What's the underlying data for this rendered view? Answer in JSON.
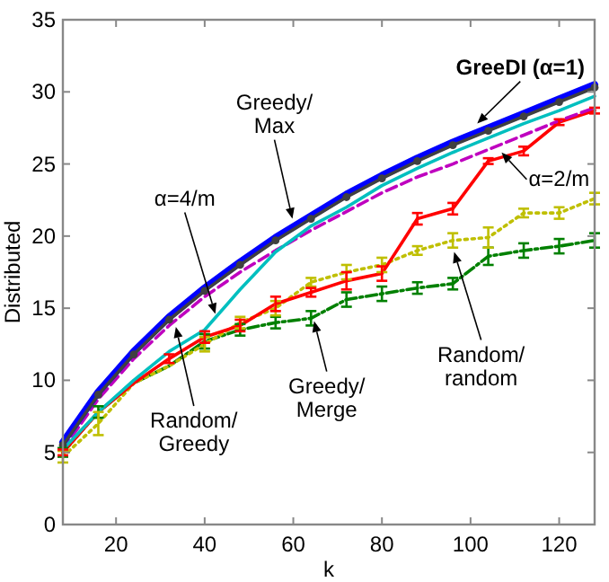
{
  "chart_data": {
    "type": "line",
    "xlabel": "k",
    "ylabel": "Distributed",
    "xlim": [
      8,
      128
    ],
    "ylim": [
      0,
      35
    ],
    "xticks": [
      20,
      40,
      60,
      80,
      100,
      120
    ],
    "yticks": [
      0,
      5,
      10,
      15,
      20,
      25,
      30,
      35
    ],
    "grid": false,
    "x": [
      8,
      16,
      24,
      32,
      40,
      48,
      56,
      64,
      72,
      80,
      88,
      96,
      104,
      112,
      120,
      128
    ],
    "series": [
      {
        "color": "#008000",
        "line_style": "dashdot",
        "values": [
          5,
          7.8,
          9.8,
          11,
          12.7,
          13.5,
          14,
          14.3,
          15.6,
          16,
          16.4,
          16.7,
          18.6,
          19,
          19.3,
          19.7
        ],
        "errors": [
          0.3,
          0.4,
          null,
          null,
          0.5,
          0.4,
          0.4,
          0.5,
          0.5,
          0.5,
          0.4,
          0.4,
          0.6,
          0.5,
          0.5,
          0.5
        ]
      },
      {
        "color": "#bfbf00",
        "line_style": "dotted",
        "values": [
          4.7,
          7,
          9.8,
          11,
          12.5,
          14,
          15,
          16.8,
          17.5,
          18,
          19,
          19.7,
          19.9,
          21.6,
          21.6,
          22.6
        ],
        "errors": [
          0.4,
          0.8,
          null,
          null,
          0.5,
          0.4,
          0.5,
          0.3,
          0.5,
          0.5,
          0.3,
          0.5,
          0.7,
          0.3,
          0.4,
          0.4
        ]
      },
      {
        "color": "#ff0000",
        "line_style": "solid",
        "values": [
          5,
          7.8,
          9.8,
          11.5,
          13,
          13.8,
          15.3,
          16.1,
          16.9,
          17.4,
          21.2,
          21.9,
          25.2,
          25.9,
          27.9,
          28.7
        ],
        "errors": [
          0.2,
          null,
          null,
          0.3,
          0.4,
          0.4,
          0.5,
          0.3,
          0.6,
          0.5,
          0.4,
          0.4,
          0.2,
          0.3,
          0.2,
          0.2
        ]
      },
      {
        "color": "#bf00bf",
        "line_style": "dashed",
        "values": [
          5.2,
          8.7,
          11.5,
          13.8,
          15.8,
          17.5,
          19,
          20.4,
          21.7,
          23,
          24.1,
          25,
          26,
          27,
          28,
          28.9
        ]
      },
      {
        "color": "#00bfbf",
        "line_style": "solid",
        "values": [
          5.2,
          7.8,
          10,
          12,
          13.5,
          16.3,
          18.9,
          20.7,
          22,
          23.5,
          24.7,
          25.8,
          26.8,
          27.8,
          28.7,
          29.7
        ]
      },
      {
        "color": "#0000ff",
        "line_style": "solid",
        "values": [
          5.7,
          9.2,
          12,
          14.4,
          16.4,
          18.2,
          19.9,
          21.4,
          22.9,
          24.2,
          25.4,
          26.5,
          27.5,
          28.5,
          29.5,
          30.5
        ]
      },
      {
        "color": "#404040",
        "line_style": "solid",
        "marker": "circle",
        "values": [
          5.5,
          9,
          11.8,
          14.2,
          16.2,
          18,
          19.7,
          21.2,
          22.7,
          24,
          25.2,
          26.3,
          27.3,
          28.3,
          29.3,
          30.3
        ]
      }
    ],
    "annotations": [
      {
        "text": "GreeDI (α=1)",
        "x": 101.5,
        "y": 27.8
      },
      {
        "text": "Greedy/\nMax",
        "x": 59.8,
        "y": 21.2
      },
      {
        "text": "α=4/m",
        "x": 42.4,
        "y": 14.6
      },
      {
        "text": "α=2/m",
        "x": 107,
        "y": 25.8
      },
      {
        "text": "Random/\nGreedy",
        "x": 33.5,
        "y": 13.7
      },
      {
        "text": "Greedy/\nMerge",
        "x": 64.7,
        "y": 14.1
      },
      {
        "text": "Random/\nrandom",
        "x": 96.3,
        "y": 18.9
      }
    ]
  }
}
